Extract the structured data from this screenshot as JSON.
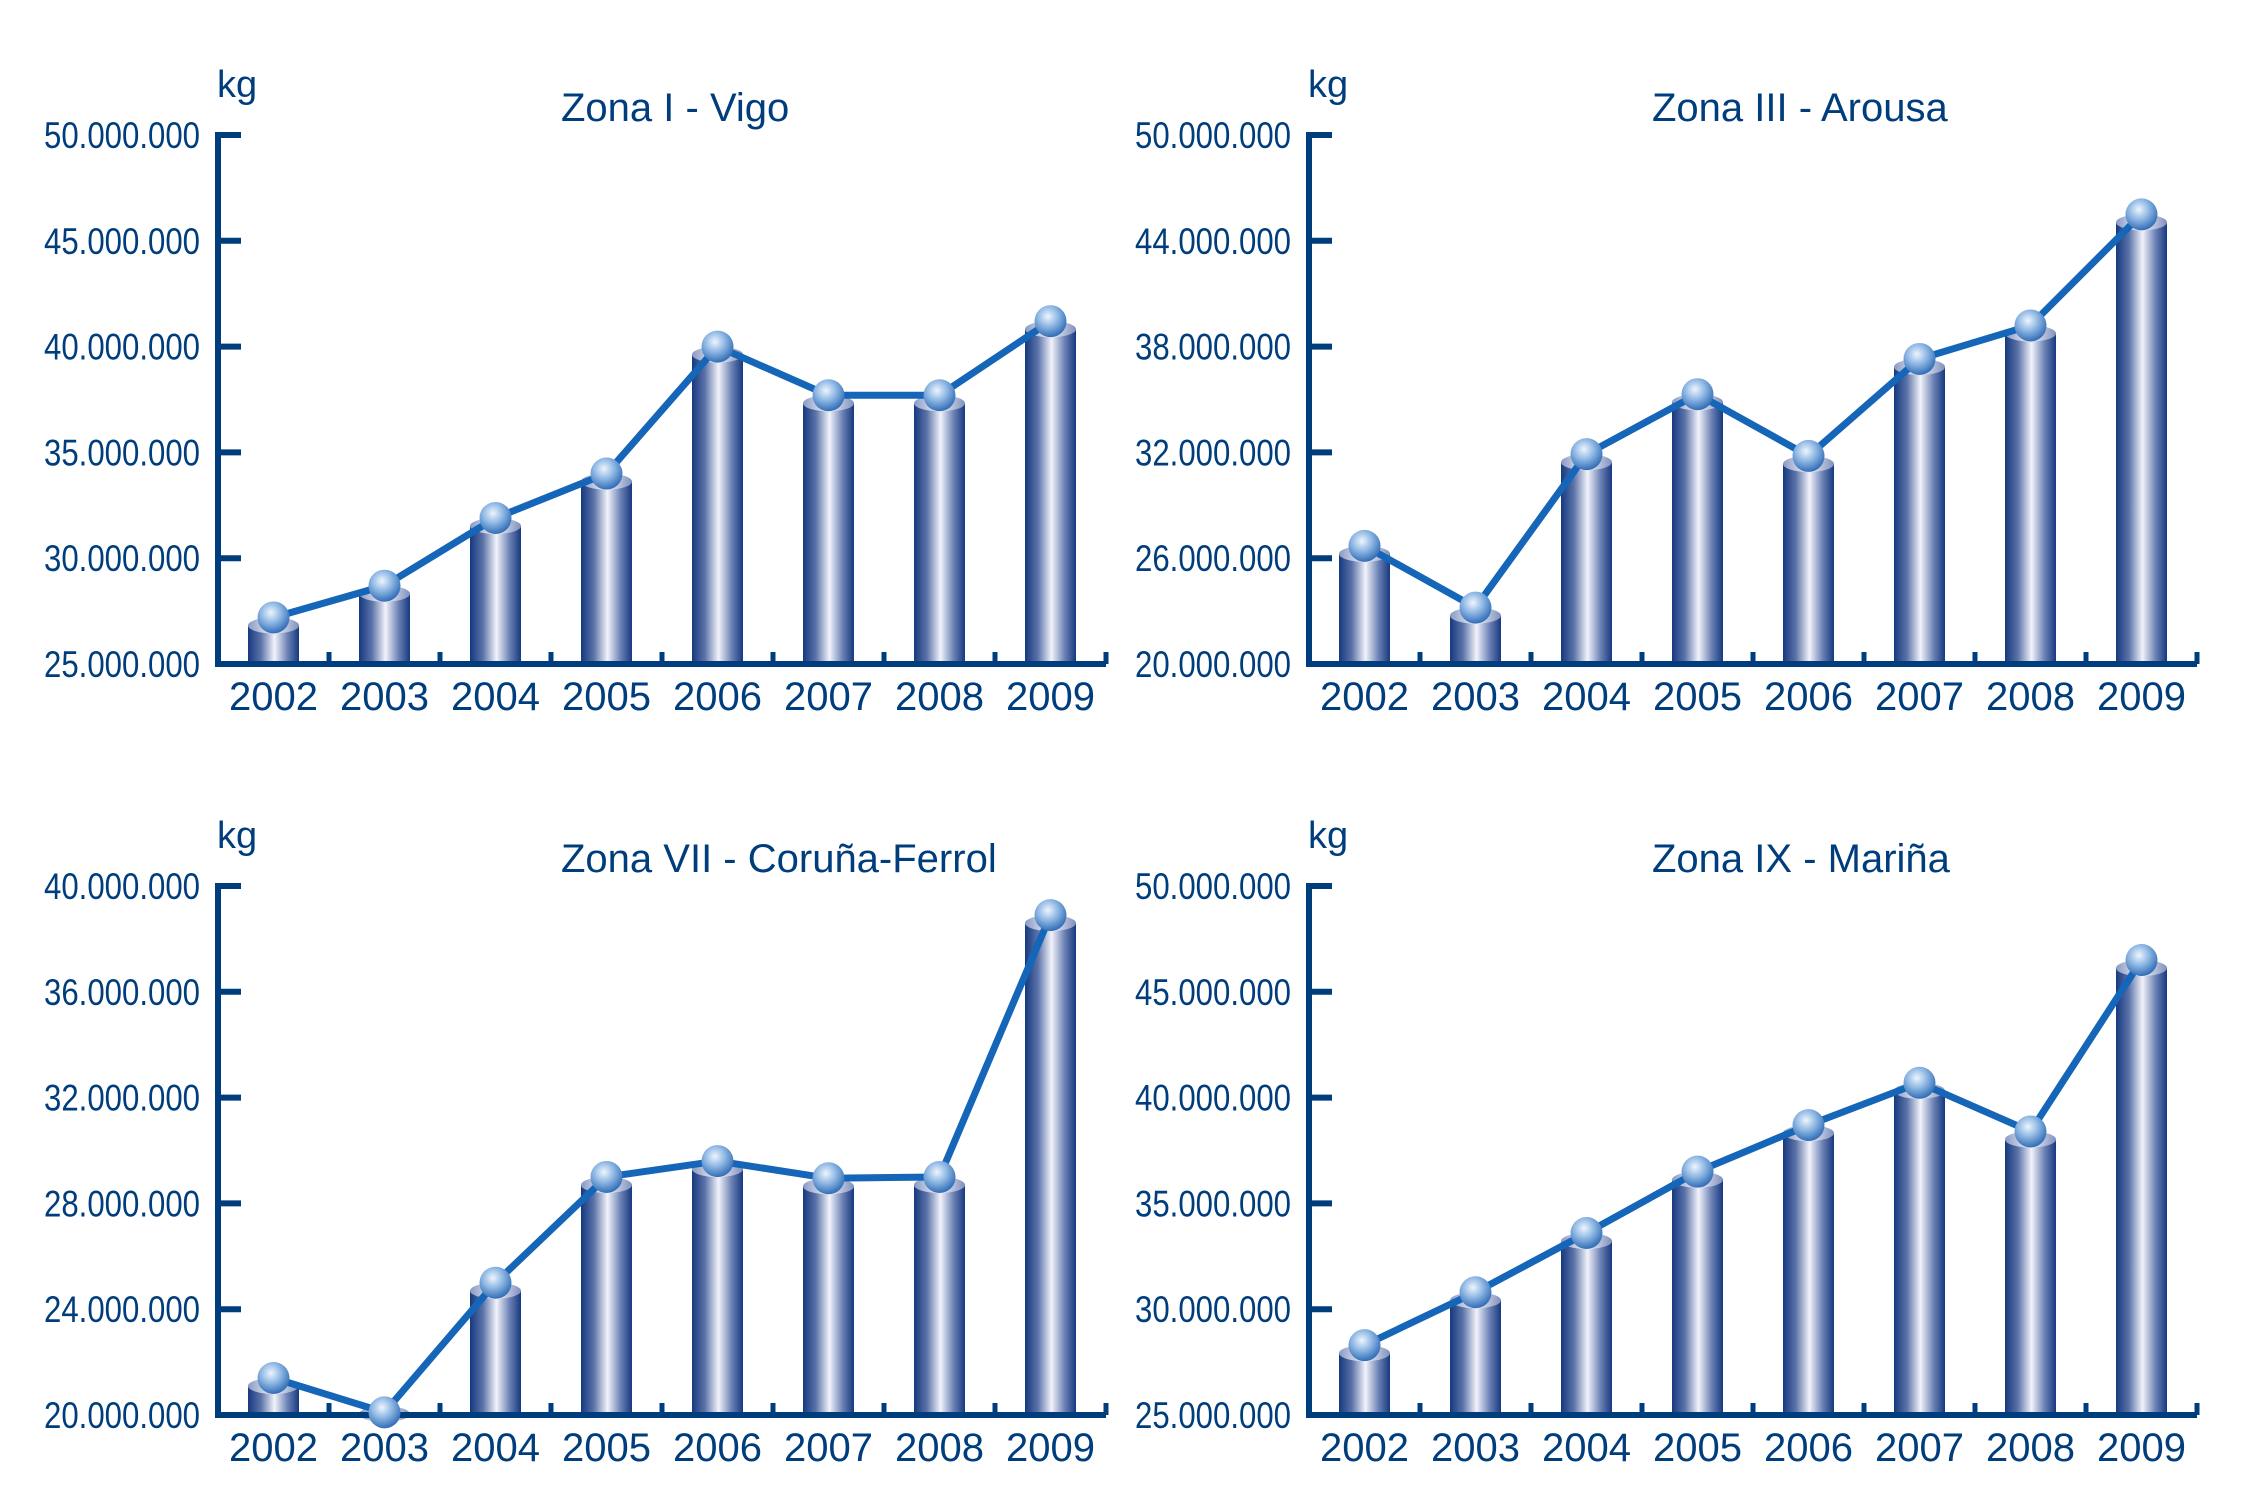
{
  "colors": {
    "axis": "#003d7c",
    "text": "#003d7c",
    "line": "#1565b8",
    "bar_dark": "#1a3f86",
    "bar_light": "#eef0f8",
    "sphere_light": "#e6f0fb",
    "sphere_dark": "#2a6bb8",
    "background": "#ffffff"
  },
  "chart_data": [
    {
      "type": "bar+line",
      "title": "Zona I - Vigo",
      "ylabel": "kg",
      "xlabel": "",
      "categories": [
        "2002",
        "2003",
        "2004",
        "2005",
        "2006",
        "2007",
        "2008",
        "2009"
      ],
      "values": [
        27200000,
        28700000,
        31900000,
        34000000,
        40000000,
        37700000,
        37700000,
        41200000
      ],
      "ylim": [
        25000000,
        50000000
      ],
      "yticks": [
        25000000,
        30000000,
        35000000,
        40000000,
        45000000,
        50000000
      ],
      "ytick_labels": [
        "25.000.000",
        "30.000.000",
        "35.000.000",
        "40.000.000",
        "45.000.000",
        "50.000.000"
      ],
      "grid": false,
      "legend": "none"
    },
    {
      "type": "bar+line",
      "title": "Zona III - Arousa",
      "ylabel": "kg",
      "xlabel": "",
      "categories": [
        "2002",
        "2003",
        "2004",
        "2005",
        "2006",
        "2007",
        "2008",
        "2009"
      ],
      "values": [
        26700000,
        23200000,
        31900000,
        35300000,
        31800000,
        37300000,
        39200000,
        45500000
      ],
      "ylim": [
        20000000,
        50000000
      ],
      "yticks": [
        20000000,
        26000000,
        32000000,
        38000000,
        44000000,
        50000000
      ],
      "ytick_labels": [
        "20.000.000",
        "26.000.000",
        "32.000.000",
        "38.000.000",
        "44.000.000",
        "50.000.000"
      ],
      "grid": false,
      "legend": "none"
    },
    {
      "type": "bar+line",
      "title": "Zona VII - Coruña-Ferrol",
      "ylabel": "kg",
      "xlabel": "",
      "categories": [
        "2002",
        "2003",
        "2004",
        "2005",
        "2006",
        "2007",
        "2008",
        "2009"
      ],
      "values": [
        21400000,
        20100000,
        25000000,
        29000000,
        29600000,
        28950000,
        29000000,
        38900000
      ],
      "ylim": [
        20000000,
        40000000
      ],
      "yticks": [
        20000000,
        24000000,
        28000000,
        32000000,
        36000000,
        40000000
      ],
      "ytick_labels": [
        "20.000.000",
        "24.000.000",
        "28.000.000",
        "32.000.000",
        "36.000.000",
        "40.000.000"
      ],
      "grid": false,
      "legend": "none"
    },
    {
      "type": "bar+line",
      "title": "Zona IX - Mariña",
      "ylabel": "kg",
      "xlabel": "",
      "categories": [
        "2002",
        "2003",
        "2004",
        "2005",
        "2006",
        "2007",
        "2008",
        "2009"
      ],
      "values": [
        28300000,
        30800000,
        33600000,
        36500000,
        38700000,
        40700000,
        38400000,
        46500000
      ],
      "ylim": [
        25000000,
        50000000
      ],
      "yticks": [
        25000000,
        30000000,
        35000000,
        40000000,
        45000000,
        50000000
      ],
      "ytick_labels": [
        "25.000.000",
        "30.000.000",
        "35.000.000",
        "40.000.000",
        "45.000.000",
        "50.000.000"
      ],
      "grid": false,
      "legend": "none"
    }
  ]
}
